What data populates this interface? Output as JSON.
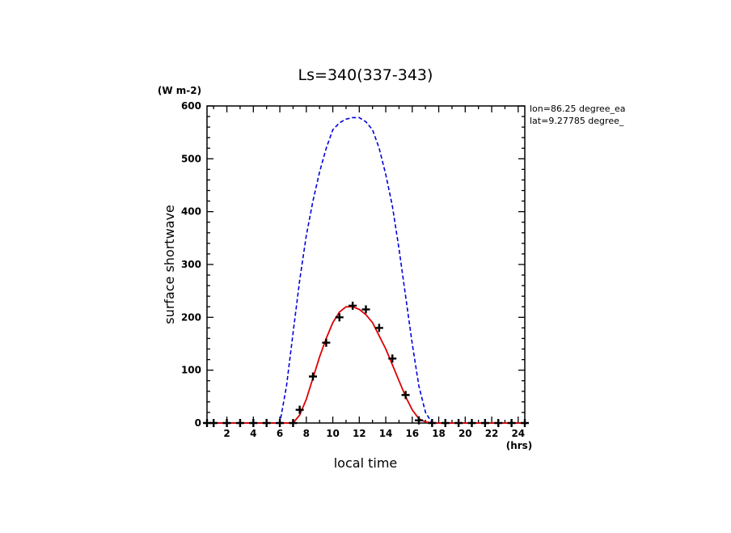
{
  "chart_data": {
    "type": "line",
    "title": "Ls=340(337-343)",
    "ylabel": "surface shortwave",
    "y_unit": "(W m-2)",
    "xlabel": "local time",
    "x_unit": "(hrs)",
    "xlim": [
      0.5,
      24.5
    ],
    "ylim": [
      0,
      600
    ],
    "x_ticks": [
      2,
      4,
      6,
      8,
      10,
      12,
      14,
      16,
      18,
      20,
      22,
      24
    ],
    "y_ticks": [
      0,
      100,
      200,
      300,
      400,
      500,
      600
    ],
    "annotations": [
      "lon=86.25 degree_ea",
      "lat=9.27785 degree_"
    ],
    "series": [
      {
        "color": "#0000dd",
        "style": "dashed",
        "x": [
          0.5,
          1,
          2,
          3,
          4,
          5,
          5.5,
          6,
          6.5,
          7,
          7.5,
          8,
          8.5,
          9,
          9.5,
          10,
          10.5,
          11,
          11.5,
          12,
          12.5,
          13,
          13.5,
          14,
          14.5,
          15,
          15.5,
          16,
          16.5,
          17,
          17.5,
          18,
          18.5,
          19,
          20,
          21,
          22,
          23,
          24,
          24.5
        ],
        "y": [
          0,
          0,
          0,
          0,
          0,
          0,
          0,
          0,
          70,
          170,
          270,
          355,
          420,
          475,
          520,
          555,
          568,
          575,
          578,
          578,
          570,
          555,
          520,
          470,
          410,
          330,
          240,
          150,
          70,
          20,
          0,
          0,
          0,
          0,
          0,
          0,
          0,
          0,
          0,
          0
        ]
      },
      {
        "color": "#dd0000",
        "style": "solid",
        "x": [
          0.5,
          1,
          2,
          3,
          4,
          5,
          6,
          7,
          7.5,
          8,
          8.5,
          9,
          9.5,
          10,
          10.5,
          11,
          11.5,
          12,
          12.5,
          13,
          13.5,
          14,
          14.5,
          15,
          15.5,
          16,
          16.5,
          17,
          17.5,
          18,
          19,
          20,
          21,
          22,
          23,
          24,
          24.5
        ],
        "y": [
          0,
          0,
          0,
          0,
          0,
          0,
          0,
          0,
          15,
          45,
          85,
          125,
          160,
          190,
          210,
          220,
          220,
          215,
          205,
          190,
          165,
          140,
          110,
          80,
          50,
          25,
          8,
          2,
          0,
          0,
          0,
          0,
          0,
          0,
          0,
          0,
          0
        ]
      },
      {
        "color": "#000000",
        "style": "markers",
        "marker": "plus",
        "x": [
          0.5,
          1,
          2,
          3,
          4,
          5,
          6,
          7,
          7.5,
          8.5,
          9.5,
          10.5,
          11.5,
          12.5,
          13.5,
          14.5,
          15.5,
          16.5,
          17.5,
          18.5,
          19.5,
          20.5,
          21.5,
          22.5,
          23.5,
          24.5
        ],
        "y": [
          0,
          0,
          0,
          0,
          0,
          0,
          0,
          0,
          25,
          88,
          152,
          200,
          222,
          215,
          180,
          122,
          53,
          5,
          0,
          0,
          0,
          0,
          0,
          0,
          0,
          0
        ]
      }
    ]
  }
}
